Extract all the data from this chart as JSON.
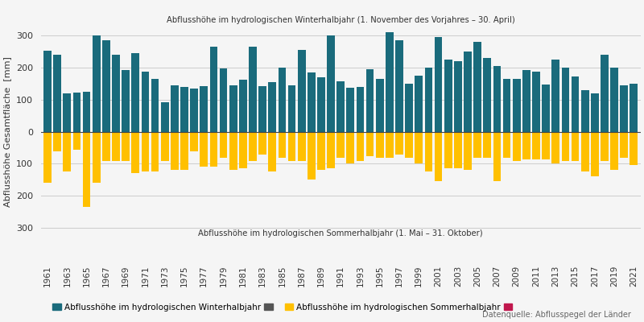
{
  "years": [
    1961,
    1962,
    1963,
    1964,
    1965,
    1966,
    1967,
    1968,
    1969,
    1970,
    1971,
    1972,
    1973,
    1974,
    1975,
    1976,
    1977,
    1978,
    1979,
    1980,
    1981,
    1982,
    1983,
    1984,
    1985,
    1986,
    1987,
    1988,
    1989,
    1990,
    1991,
    1992,
    1993,
    1994,
    1995,
    1996,
    1997,
    1998,
    1999,
    2000,
    2001,
    2002,
    2003,
    2004,
    2005,
    2006,
    2007,
    2008,
    2009,
    2010,
    2011,
    2012,
    2013,
    2014,
    2015,
    2016,
    2017,
    2018,
    2019,
    2020,
    2021
  ],
  "winter": [
    253,
    240,
    120,
    122,
    125,
    300,
    285,
    240,
    193,
    245,
    188,
    165,
    93,
    145,
    140,
    135,
    142,
    265,
    198,
    144,
    161,
    265,
    143,
    155,
    200,
    145,
    256,
    184,
    170,
    300,
    157,
    138,
    140,
    195,
    165,
    310,
    285,
    150,
    175,
    200,
    295,
    225,
    220,
    250,
    280,
    230,
    205,
    165,
    165,
    192,
    188,
    148,
    226,
    200,
    172,
    130,
    120,
    240,
    200,
    145,
    150
  ],
  "summer": [
    -160,
    -60,
    -125,
    -55,
    -235,
    -160,
    -90,
    -90,
    -90,
    -130,
    -125,
    -125,
    -90,
    -120,
    -120,
    -60,
    -110,
    -110,
    -80,
    -120,
    -115,
    -90,
    -70,
    -125,
    -80,
    -90,
    -90,
    -150,
    -120,
    -115,
    -80,
    -100,
    -90,
    -75,
    -80,
    -80,
    -70,
    -80,
    -100,
    -125,
    -155,
    -115,
    -115,
    -120,
    -80,
    -80,
    -155,
    -80,
    -90,
    -85,
    -85,
    -85,
    -100,
    -90,
    -90,
    -125,
    -140,
    -90,
    -120,
    -80,
    -105
  ],
  "winter_color": "#1a6b7c",
  "summer_color": "#FFC000",
  "background_color": "#f5f5f5",
  "ylabel": "Abflusshöhe Gesamtfläche  [mm]",
  "annotation_winter": "Abflusshöhe im hydrologischen Winterhalbjahr (1. November des Vorjahres – 30. April)",
  "annotation_summer": "Abflusshöhe im hydrologischen Sommerhalbjahr (1. Mai – 31. Oktober)",
  "legend_winter": "Abflusshöhe im hydrologischen Winterhalbjahr",
  "legend_summer": "Abflusshöhe im hydrologischen Sommerhalbjahr",
  "source": "Datenquelle: Abflusspegel der Länder",
  "sig_color_winter": "#555555",
  "sig_color_summer": "#c0174d"
}
